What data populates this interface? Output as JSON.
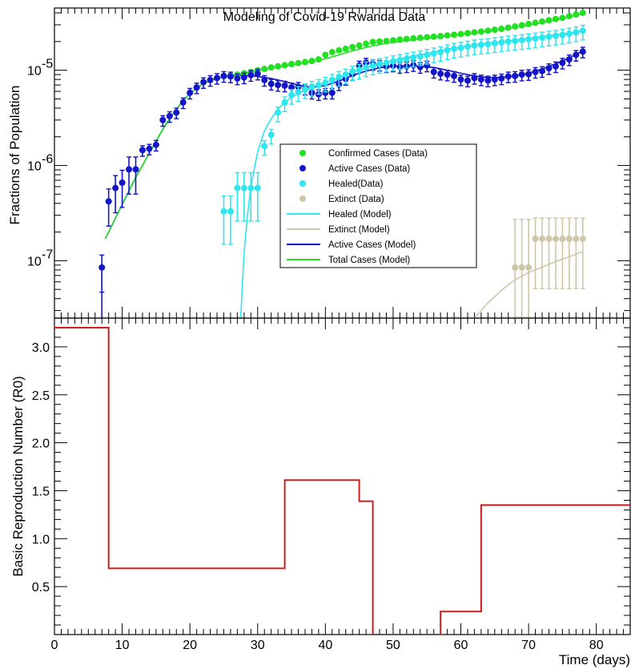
{
  "chart_data": [
    {
      "type": "scatter",
      "title": "Modeling of Covid-19 Rwanda Data",
      "ylabel": "Fractions of Population",
      "xlim": [
        0,
        85
      ],
      "ylim": [
        2.5e-08,
        4.5e-05
      ],
      "yscale": "log",
      "y_ticks": [
        {
          "label": "10",
          "exp": "-7",
          "value": 1e-07
        },
        {
          "label": "10",
          "exp": "-6",
          "value": 1e-06
        },
        {
          "label": "10",
          "exp": "-5",
          "value": 1e-05
        }
      ],
      "legend_position": "center",
      "series": [
        {
          "name": "Confirmed Cases (Data)",
          "kind": "points",
          "color": "#22e022",
          "x": [
            25,
            26,
            27,
            28,
            29,
            30,
            31,
            32,
            33,
            34,
            35,
            36,
            37,
            38,
            39,
            40,
            41,
            42,
            43,
            44,
            45,
            46,
            47,
            48,
            49,
            50,
            51,
            52,
            53,
            54,
            55,
            56,
            57,
            58,
            59,
            60,
            61,
            62,
            63,
            64,
            65,
            66,
            67,
            68,
            69,
            70,
            71,
            72,
            73,
            74,
            75,
            76,
            77,
            78
          ],
          "y": [
            8.7e-06,
            8.8e-06,
            9e-06,
            9.3e-06,
            9.6e-06,
            1e-05,
            1.03e-05,
            1.07e-05,
            1.1e-05,
            1.13e-05,
            1.16e-05,
            1.19e-05,
            1.22e-05,
            1.25e-05,
            1.3e-05,
            1.45e-05,
            1.55e-05,
            1.62e-05,
            1.68e-05,
            1.75e-05,
            1.82e-05,
            1.9e-05,
            1.98e-05,
            2e-05,
            2.03e-05,
            2.06e-05,
            2.1e-05,
            2.13e-05,
            2.16e-05,
            2.19e-05,
            2.22e-05,
            2.25e-05,
            2.28e-05,
            2.32e-05,
            2.36e-05,
            2.4e-05,
            2.45e-05,
            2.5e-05,
            2.55e-05,
            2.6e-05,
            2.66e-05,
            2.72e-05,
            2.8e-05,
            2.88e-05,
            2.97e-05,
            3.06e-05,
            3.15e-05,
            3.25e-05,
            3.35e-05,
            3.45e-05,
            3.55e-05,
            3.7e-05,
            3.85e-05,
            4e-05
          ]
        },
        {
          "name": "Active Cases (Data)",
          "kind": "points",
          "color": "#1414c8",
          "x": [
            7,
            8,
            9,
            10,
            11,
            12,
            13,
            14,
            15,
            16,
            17,
            18,
            19,
            20,
            21,
            22,
            23,
            24,
            25,
            26,
            27,
            28,
            29,
            30,
            31,
            32,
            33,
            34,
            35,
            36,
            37,
            38,
            39,
            40,
            41,
            42,
            43,
            44,
            45,
            46,
            47,
            48,
            49,
            50,
            51,
            52,
            53,
            54,
            55,
            56,
            57,
            58,
            59,
            60,
            61,
            62,
            63,
            64,
            65,
            66,
            67,
            68,
            69,
            70,
            71,
            72,
            73,
            74,
            75,
            76,
            77,
            78
          ],
          "y": [
            8.5e-08,
            4.2e-07,
            5.8e-07,
            6.6e-07,
            9.1e-07,
            9.1e-07,
            1.45e-06,
            1.5e-06,
            1.65e-06,
            3e-06,
            3.3e-06,
            3.6e-06,
            4.6e-06,
            5.8e-06,
            6.6e-06,
            7.5e-06,
            7.9e-06,
            8.3e-06,
            8.7e-06,
            8.6e-06,
            8.2e-06,
            8.4e-06,
            8.9e-06,
            9.2e-06,
            7.9e-06,
            7.2e-06,
            7e-06,
            6.9e-06,
            6.6e-06,
            6.7e-06,
            6.4e-06,
            5.8e-06,
            5.6e-06,
            5.8e-06,
            5.8e-06,
            7.1e-06,
            8.1e-06,
            9.1e-06,
            1.12e-05,
            1.2e-05,
            1.16e-05,
            1.14e-05,
            1.1e-05,
            1.12e-05,
            1.08e-05,
            1.1e-05,
            1.13e-05,
            1.08e-05,
            1.12e-05,
            9.6e-06,
            9.2e-06,
            9e-06,
            8.7e-06,
            8e-06,
            7.8e-06,
            8.3e-06,
            8e-06,
            7.8e-06,
            8e-06,
            8.2e-06,
            8.6e-06,
            8.7e-06,
            9e-06,
            9.1e-06,
            9.6e-06,
            9.8e-06,
            1.05e-05,
            1.1e-05,
            1.2e-05,
            1.3e-05,
            1.45e-05,
            1.57e-05
          ]
        },
        {
          "name": "Healed(Data)",
          "kind": "points",
          "color": "#2ee6ee",
          "x": [
            25,
            26,
            27,
            28,
            29,
            30,
            31,
            32,
            33,
            34,
            35,
            36,
            37,
            38,
            39,
            40,
            41,
            42,
            43,
            44,
            45,
            46,
            47,
            48,
            49,
            50,
            51,
            52,
            53,
            54,
            55,
            56,
            57,
            58,
            59,
            60,
            61,
            62,
            63,
            64,
            65,
            66,
            67,
            68,
            69,
            70,
            71,
            72,
            73,
            74,
            75,
            76,
            77,
            78
          ],
          "y": [
            3.3e-07,
            3.3e-07,
            5.8e-07,
            5.8e-07,
            5.8e-07,
            5.8e-07,
            1.6e-06,
            2.1e-06,
            3.6e-06,
            4.6e-06,
            5.5e-06,
            5.9e-06,
            6.3e-06,
            6.7e-06,
            7e-06,
            7.4e-06,
            7.9e-06,
            8.5e-06,
            9e-06,
            9.7e-06,
            1.01e-05,
            1.07e-05,
            1.12e-05,
            1.16e-05,
            1.2e-05,
            1.24e-05,
            1.28e-05,
            1.32e-05,
            1.36e-05,
            1.4e-05,
            1.45e-05,
            1.5e-05,
            1.55e-05,
            1.62e-05,
            1.68e-05,
            1.72e-05,
            1.77e-05,
            1.82e-05,
            1.85e-05,
            1.88e-05,
            1.92e-05,
            1.96e-05,
            2e-05,
            2.03e-05,
            2.07e-05,
            2.11e-05,
            2.15e-05,
            2.2e-05,
            2.25e-05,
            2.3e-05,
            2.35e-05,
            2.42e-05,
            2.5e-05,
            2.6e-05
          ]
        },
        {
          "name": "Extinct (Data)",
          "kind": "points",
          "color": "#cdc6a8",
          "x": [
            68,
            69,
            70,
            71,
            72,
            73,
            74,
            75,
            76,
            77,
            78
          ],
          "y": [
            8.5e-08,
            8.5e-08,
            8.5e-08,
            1.7e-07,
            1.7e-07,
            1.7e-07,
            1.7e-07,
            1.7e-07,
            1.7e-07,
            1.7e-07,
            1.7e-07
          ]
        },
        {
          "name": "Healed (Model)",
          "kind": "line",
          "color": "#2ee6ee",
          "x": [
            27.5,
            28,
            28.5,
            29,
            30,
            31,
            32,
            33,
            34,
            35,
            36,
            38,
            40,
            42,
            44,
            46,
            48,
            50,
            52,
            55,
            58,
            61,
            64,
            67,
            70,
            73,
            76,
            78
          ],
          "y": [
            2.5e-08,
            1.2e-07,
            3e-07,
            6e-07,
            1.4e-06,
            2.3e-06,
            3.1e-06,
            3.9e-06,
            4.6e-06,
            5.2e-06,
            5.7e-06,
            6.6e-06,
            7.4e-06,
            8.4e-06,
            9.5e-06,
            1.06e-05,
            1.16e-05,
            1.26e-05,
            1.36e-05,
            1.5e-05,
            1.66e-05,
            1.8e-05,
            1.92e-05,
            2.03e-05,
            2.15e-05,
            2.3e-05,
            2.45e-05,
            2.6e-05
          ]
        },
        {
          "name": "Extinct (Model)",
          "kind": "line",
          "color": "#cdc6a8",
          "x": [
            62,
            63,
            64,
            65,
            66,
            67,
            68,
            70,
            72,
            74,
            76,
            78
          ],
          "y": [
            2.5e-08,
            3e-08,
            3.6e-08,
            4.2e-08,
            4.9e-08,
            5.6e-08,
            6.3e-08,
            7.5e-08,
            8.6e-08,
            9.8e-08,
            1.1e-07,
            1.25e-07
          ]
        },
        {
          "name": "Active Cases (Model)",
          "kind": "line",
          "color": "#1414c8",
          "x": [
            7.5,
            8,
            9,
            10,
            11,
            12,
            13,
            14,
            15,
            16,
            17,
            18,
            19,
            20,
            21,
            22,
            23,
            24,
            25,
            26,
            27,
            28,
            29,
            30,
            32,
            34,
            36,
            38,
            40,
            42,
            44,
            46,
            48,
            50,
            52,
            54,
            56,
            58,
            60,
            62,
            64,
            66,
            68,
            70,
            72,
            74,
            76,
            78
          ],
          "y": [
            1.7e-07,
            2e-07,
            2.8e-07,
            3.9e-07,
            5.4e-07,
            7.5e-07,
            1e-06,
            1.35e-06,
            1.8e-06,
            2.4e-06,
            3.1e-06,
            3.9e-06,
            4.8e-06,
            5.7e-06,
            6.5e-06,
            7.2e-06,
            7.8e-06,
            8.2e-06,
            8.5e-06,
            8.7e-06,
            8.8e-06,
            8.8e-06,
            8.7e-06,
            8.6e-06,
            8.2e-06,
            7.6e-06,
            7e-06,
            6.6e-06,
            6.9e-06,
            7.7e-06,
            8.8e-06,
            9.8e-06,
            1.06e-05,
            1.1e-05,
            1.11e-05,
            1.1e-05,
            1.07e-05,
            1e-05,
            9.3e-06,
            8.7e-06,
            8.4e-06,
            8.4e-06,
            8.7e-06,
            9.3e-06,
            1.03e-05,
            1.17e-05,
            1.35e-05,
            1.6e-05
          ]
        },
        {
          "name": "Total Cases (Model)",
          "kind": "line",
          "color": "#22e022",
          "x": [
            7.5,
            8,
            9,
            10,
            11,
            12,
            13,
            14,
            15,
            16,
            17,
            18,
            19,
            20,
            21,
            22,
            23,
            24,
            25,
            26,
            27,
            28,
            30,
            32,
            34,
            36,
            38,
            40,
            42,
            44,
            46,
            48,
            50,
            52,
            54,
            56,
            58,
            60,
            62,
            64,
            66,
            68,
            70,
            72,
            74,
            76,
            78
          ],
          "y": [
            1.7e-07,
            2e-07,
            2.8e-07,
            3.9e-07,
            5.4e-07,
            7.5e-07,
            1e-06,
            1.35e-06,
            1.8e-06,
            2.4e-06,
            3.1e-06,
            3.9e-06,
            4.8e-06,
            5.7e-06,
            6.5e-06,
            7.2e-06,
            7.8e-06,
            8.2e-06,
            8.5e-06,
            8.75e-06,
            9e-06,
            9.3e-06,
            9.9e-06,
            1.05e-05,
            1.11e-05,
            1.17e-05,
            1.23e-05,
            1.32e-05,
            1.45e-05,
            1.6e-05,
            1.74e-05,
            1.86e-05,
            1.96e-05,
            2.05e-05,
            2.13e-05,
            2.2e-05,
            2.28e-05,
            2.36e-05,
            2.45e-05,
            2.56e-05,
            2.68e-05,
            2.82e-05,
            2.98e-05,
            3.16e-05,
            3.38e-05,
            3.62e-05,
            3.95e-05
          ]
        }
      ]
    },
    {
      "type": "line",
      "title": "",
      "xlabel": "Time (days)",
      "ylabel": "Basic Reproduction Number (R0)",
      "xlim": [
        0,
        85
      ],
      "ylim": [
        0,
        3.3
      ],
      "x_ticks": [
        0,
        10,
        20,
        30,
        40,
        50,
        60,
        70,
        80
      ],
      "y_ticks": [
        "0.5",
        "1.0",
        "1.5",
        "2.0",
        "2.5",
        "3.0"
      ],
      "series": [
        {
          "name": "",
          "kind": "step",
          "color": "#d01c1c",
          "x": [
            0,
            8,
            34,
            45,
            47,
            57,
            63,
            85
          ],
          "y": [
            3.2,
            0.69,
            1.61,
            1.39,
            0.0,
            0.24,
            1.35,
            1.35
          ]
        }
      ]
    }
  ]
}
